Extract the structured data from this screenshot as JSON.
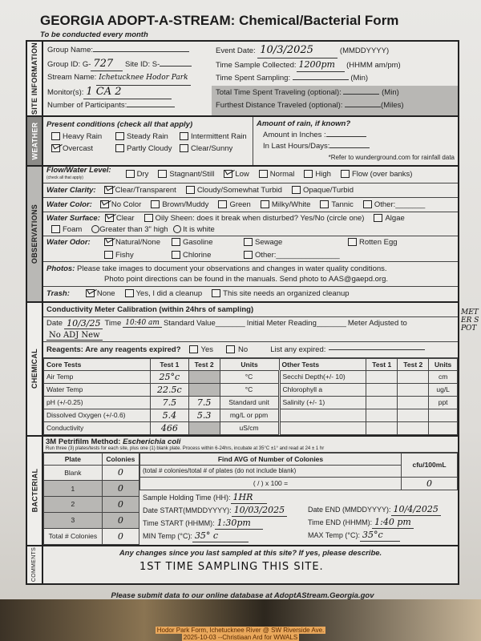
{
  "title": "GEORGIA ADOPT-A-STREAM: Chemical/Bacterial Form",
  "subtitle": "To be conducted every month",
  "site_info": {
    "section": "SITE INFORMATION",
    "group_name_label": "Group Name:",
    "group_name": "",
    "group_id_label": "Group ID: G-",
    "group_id": "727",
    "site_id_label": "Site ID: S-",
    "site_id": "",
    "stream_name_label": "Stream Name:",
    "stream_name": "Ichetucknee  Hodor Park",
    "monitors_label": "Monitor(s):",
    "monitors": "1  CA 2",
    "participants_label": "Number of Participants:",
    "participants": "",
    "event_date_label": "Event Date:",
    "event_date": "10/3/2025",
    "event_date_fmt": "(MMDDYYYY)",
    "time_collected_label": "Time Sample Collected:",
    "time_collected": "1200pm",
    "time_fmt": "(HHMM am/pm)",
    "time_spent_label": "Time Spent Sampling:",
    "time_spent": "",
    "min": "(Min)",
    "travel_label": "Total Time Spent Traveling (optional):",
    "travel": "",
    "distance_label": "Furthest Distance Traveled (optional):",
    "distance": "",
    "miles": "(Miles)"
  },
  "weather": {
    "section": "WEATHER",
    "conditions_label": "Present conditions (check all that apply)",
    "items": [
      {
        "label": "Heavy Rain",
        "checked": false
      },
      {
        "label": "Steady Rain",
        "checked": false
      },
      {
        "label": "Intermittent Rain",
        "checked": false
      },
      {
        "label": "Overcast",
        "checked": true
      },
      {
        "label": "Partly Cloudy",
        "checked": false
      },
      {
        "label": "Clear/Sunny",
        "checked": false
      }
    ],
    "rain_label": "Amount of rain, if known?",
    "inches_label": "Amount in Inches :",
    "hours_label": "In Last Hours/Days:",
    "refer": "*Refer to wunderground.com for rainfall data"
  },
  "observations": {
    "section": "OBSERVATIONS",
    "flow": {
      "label": "Flow/Water Level:",
      "note": "(check all that apply)",
      "items": [
        {
          "label": "Dry",
          "checked": false
        },
        {
          "label": "Stagnant/Still",
          "checked": false
        },
        {
          "label": "Low",
          "checked": true
        },
        {
          "label": "Normal",
          "checked": false
        },
        {
          "label": "High",
          "checked": false
        },
        {
          "label": "Flow (over banks)",
          "checked": false
        }
      ]
    },
    "clarity": {
      "label": "Water Clarity:",
      "items": [
        {
          "label": "Clear/Transparent",
          "checked": true
        },
        {
          "label": "Cloudy/Somewhat Turbid",
          "checked": false
        },
        {
          "label": "Opaque/Turbid",
          "checked": false
        }
      ]
    },
    "color": {
      "label": "Water Color:",
      "items": [
        {
          "label": "No Color",
          "checked": true
        },
        {
          "label": "Brown/Muddy",
          "checked": false
        },
        {
          "label": "Green",
          "checked": false
        },
        {
          "label": "Milky/White",
          "checked": false
        },
        {
          "label": "Tannic",
          "checked": false
        },
        {
          "label": "Other:_______",
          "checked": false
        }
      ]
    },
    "surface": {
      "label": "Water Surface:",
      "items": [
        {
          "label": "Clear",
          "checked": true
        },
        {
          "label": "Oily Sheen: does it break when disturbed? Yes/No (circle one)",
          "checked": false
        },
        {
          "label": "Algae",
          "checked": false
        },
        {
          "label": "Foam",
          "checked": false
        }
      ],
      "greater": "Greater than 3\" high",
      "white": "It is white"
    },
    "odor": {
      "label": "Water Odor:",
      "items": [
        {
          "label": "Natural/None",
          "checked": true
        },
        {
          "label": "Gasoline",
          "checked": false
        },
        {
          "label": "Sewage",
          "checked": false
        },
        {
          "label": "Rotten Egg",
          "checked": false
        },
        {
          "label": "Fishy",
          "checked": false
        },
        {
          "label": "Chlorine",
          "checked": false
        },
        {
          "label": "Other:_______________",
          "checked": false
        }
      ]
    },
    "photos_label": "Photos:",
    "photos1": "Please take images to document your observations and changes in water quality conditions.",
    "photos2": "Photo point directions can be found in the manuals. Send photo to AAS@gaepd.org.",
    "trash": {
      "label": "Trash:",
      "items": [
        {
          "label": "None",
          "checked": true
        },
        {
          "label": "Yes, I did a cleanup",
          "checked": false
        },
        {
          "label": "This site needs an organized cleanup",
          "checked": false
        }
      ]
    }
  },
  "chemical": {
    "section": "CHEMICAL",
    "calib_title": "Conductivity Meter Calibration (within 24hrs of sampling)",
    "date_label": "Date",
    "date": "10/3/25",
    "time_label": "Time",
    "time": "10:40 am",
    "std_label": "Standard Value_______",
    "init_label": "Initial Meter Reading_______",
    "adj_label": "Meter Adjusted to",
    "adj": "No ADJ New",
    "margin_note": "METER SPOT",
    "reagents_label": "Reagents: Are any reagents expired?",
    "yes": "Yes",
    "no": "No",
    "expired_label": "List any expired:",
    "headers": [
      "Core Tests",
      "Test 1",
      "Test 2",
      "Units",
      "Other Tests",
      "Test 1",
      "Test 2",
      "Units"
    ],
    "rows": [
      [
        "Air Temp",
        "25°c",
        "",
        "°C",
        "Secchi Depth(+/- 10)",
        "",
        "",
        "cm"
      ],
      [
        "Water Temp",
        "22.5c",
        "",
        "°C",
        "Chlorophyll a",
        "",
        "",
        "ug/L"
      ],
      [
        "pH (+/-0.25)",
        "7.5",
        "7.5",
        "Standard unit",
        "Salinity (+/- 1)",
        "",
        "",
        "ppt"
      ],
      [
        "Dissolved Oxygen (+/-0.6)",
        "5.4",
        "5.3",
        "mg/L or ppm",
        "",
        "",
        "",
        ""
      ],
      [
        "Conductivity",
        "466",
        "",
        "uS/cm",
        "",
        "",
        "",
        ""
      ]
    ]
  },
  "bacterial": {
    "section": "BACTERIAL",
    "title": "3M Petrifilm Method:",
    "organism": "Escherichia coli",
    "instructions": "Run three (3) plates/tests for each site, plus one (1) blank plate. Process within 6-24hrs, incubate at 35°C ±1° and read at 24 ± 1 hr",
    "plate_h": "Plate",
    "colonies_h": "Colonies",
    "avg_h": "Find AVG of Number of Colonies",
    "avg_sub": "(total # colonies/total # of plates (do not include blank)",
    "formula": "(          /          )  x 100 =",
    "cfu_h": "cfu/100mL",
    "cfu": "0",
    "plates": [
      {
        "plate": "Blank",
        "colonies": "0"
      },
      {
        "plate": "1",
        "colonies": "0"
      },
      {
        "plate": "2",
        "colonies": "0"
      },
      {
        "plate": "3",
        "colonies": "0"
      },
      {
        "plate": "Total # Colonies",
        "colonies": "0"
      }
    ],
    "holding_label": "Sample Holding Time (HH):",
    "holding": "1HR",
    "date_start_label": "Date START(MMDDYYYY):",
    "date_start": "10/03/2025",
    "time_start_label": "Time START (HHMM):",
    "time_start": "1:30pm",
    "min_label": "MIN Temp (°C):",
    "min_temp": "35° c",
    "date_end_label": "Date END (MMDDYYYY):",
    "date_end": "10/4/2025",
    "time_end_label": "Time END (HHMM):",
    "time_end": "1:40 pm",
    "max_label": "MAX Temp (°C):",
    "max_temp": "35°c"
  },
  "comments": {
    "section": "COMMENTS",
    "prompt": "Any changes since you last sampled at this site? If yes, please describe.",
    "text": "1ST TIME SAMPLING THIS SITE."
  },
  "footer": "Please submit data to our online database at AdoptAStream.Georgia.gov",
  "caption": [
    "Hodor Park Form, Ichetucknee River @ SW Riverside Ave.",
    "2025-10-03 --Christiaan Ard for WWALS"
  ]
}
